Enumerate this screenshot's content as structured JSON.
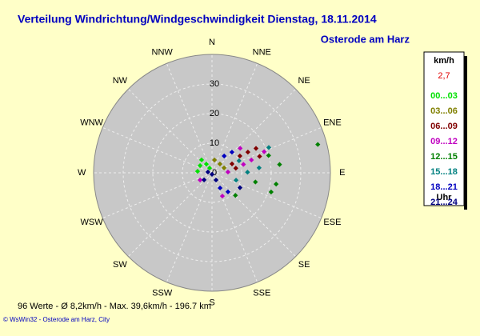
{
  "chart_data": {
    "type": "scatter",
    "polar": true,
    "title": "Verteilung Windrichtung/Windgeschwindigkeit  Dienstag, 18.11.2014",
    "subtitle": "Osterode am Harz",
    "categories": [
      "N",
      "NNE",
      "NE",
      "ENE",
      "E",
      "ESE",
      "SE",
      "SSE",
      "S",
      "SSW",
      "SW",
      "WSW",
      "W",
      "WNW",
      "NW",
      "NNW"
    ],
    "rlim": [
      0,
      40
    ],
    "rticks": [
      0,
      10,
      20,
      30
    ],
    "grid": true,
    "legend_title": "km/h",
    "legend_value": "2,7",
    "legend_footer": "Uhr",
    "series": [
      {
        "name": "00...03",
        "color": "#00e000",
        "direction": [
          301,
          327,
          276,
          321,
          333
        ],
        "values": [
          4.7,
          3.5,
          4.9,
          5.6,
          1.8
        ]
      },
      {
        "name": "03...06",
        "color": "#808000",
        "direction": [
          11,
          42,
          68
        ],
        "values": [
          4.4,
          4,
          4.4
        ]
      },
      {
        "name": "06...09",
        "color": "#800000",
        "direction": [
          59,
          60,
          71,
          66,
          61,
          79
        ],
        "values": [
          11,
          14,
          17,
          7.4,
          17,
          8.2
        ]
      },
      {
        "name": "09...12",
        "color": "#c000c0",
        "direction": [
          68,
          72,
          75,
          87,
          49,
          239,
          156
        ],
        "values": [
          19,
          14,
          11,
          5.4,
          12.6,
          4.7,
          8.6
        ]
      },
      {
        "name": "12...15",
        "color": "#008000",
        "direction": [
          75,
          100,
          108,
          73,
          83,
          102,
          134
        ],
        "values": [
          37,
          22,
          21,
          20,
          23,
          15,
          11
        ]
      },
      {
        "name": "15...18",
        "color": "#008080",
        "direction": [
          84,
          89,
          107,
          66,
          66
        ],
        "values": [
          16,
          12,
          8.5,
          10,
          21
        ]
      },
      {
        "name": "18...21",
        "color": "#0000c0",
        "direction": [
          36,
          44,
          152,
          140
        ],
        "values": [
          7,
          9.7,
          5.8,
          8.4
        ]
      },
      {
        "name": "21...24",
        "color": "#000080",
        "direction": [
          281,
          151,
          228,
          180,
          118
        ],
        "values": [
          1.4,
          2.8,
          3.6,
          0.5,
          10.7
        ]
      }
    ],
    "footer": "96 Werte   -   Ø 8,2km/h   -   Max. 39,6km/h   -   196.7 km",
    "credit": "© WsWin32  -  Osterode am Harz, City"
  }
}
